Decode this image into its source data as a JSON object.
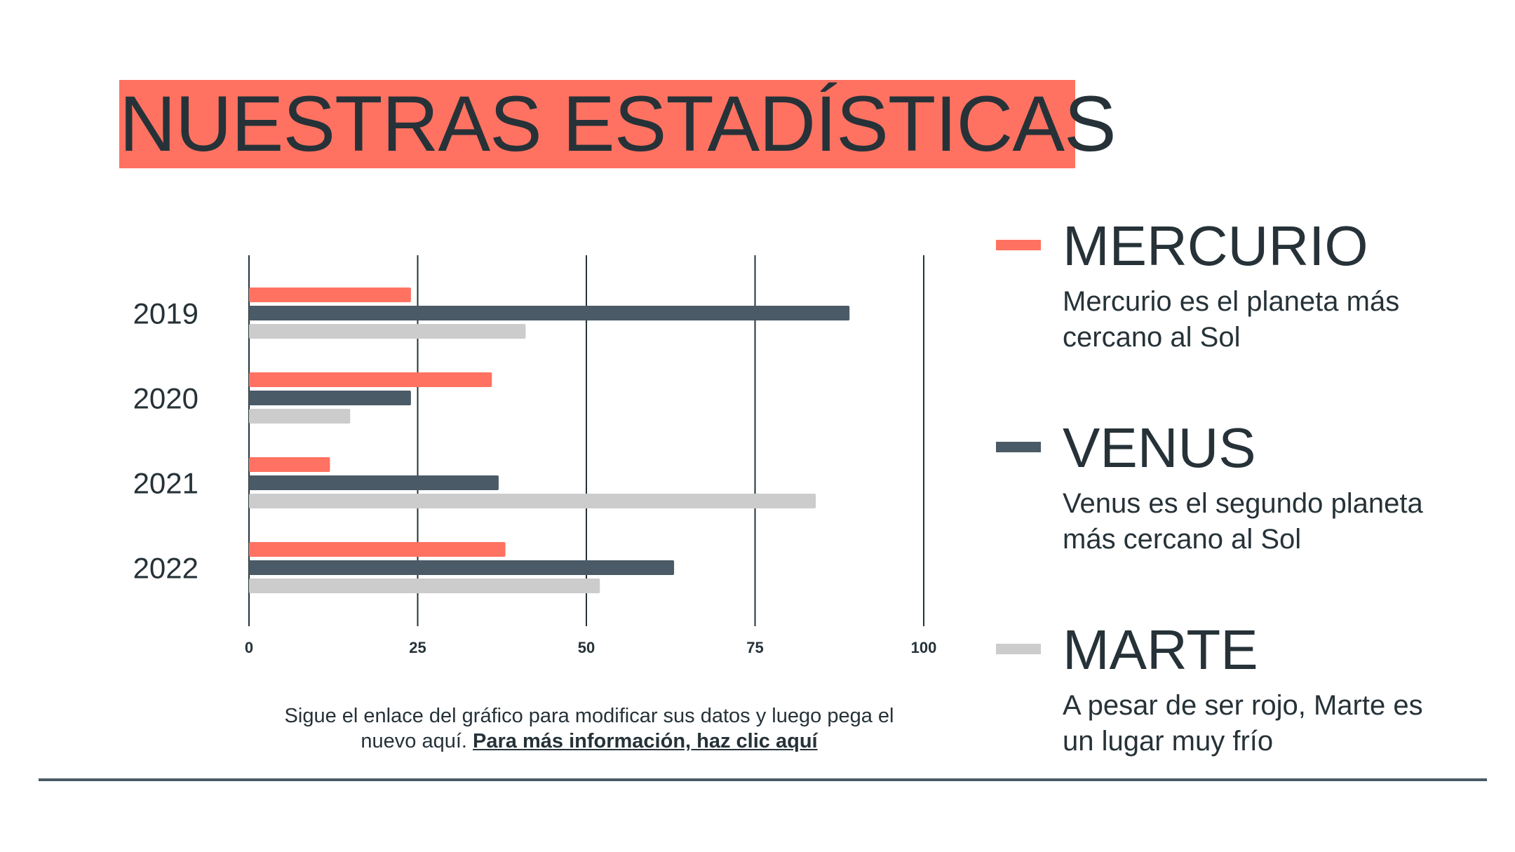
{
  "slide": {
    "title": "NUESTRAS ESTADÍSTICAS",
    "note_text": "Sigue el enlace del gráfico para modificar sus datos y luego pega el nuevo aquí.",
    "note_link": "Para más información, haz clic aquí"
  },
  "legend": [
    {
      "name": "MERCURIO",
      "description": "Mercurio es el planeta más cercano al Sol",
      "color": "#ff7261"
    },
    {
      "name": "VENUS",
      "description": "Venus es el segundo planeta más cercano al Sol",
      "color": "#4a5a66"
    },
    {
      "name": "MARTE",
      "description": "A pesar de ser rojo, Marte es un lugar muy frío",
      "color": "#cccccc"
    }
  ],
  "colors": {
    "accent": "#ff7261",
    "dark": "#4a5a66",
    "light": "#cccccc",
    "text": "#263238"
  },
  "chart_data": {
    "type": "bar",
    "orientation": "horizontal",
    "categories": [
      "2019",
      "2020",
      "2021",
      "2022"
    ],
    "series": [
      {
        "name": "MERCURIO",
        "color": "#ff7261",
        "values": [
          24,
          36,
          12,
          38
        ]
      },
      {
        "name": "VENUS",
        "color": "#4a5a66",
        "values": [
          89,
          24,
          37,
          63
        ]
      },
      {
        "name": "MARTE",
        "color": "#cccccc",
        "values": [
          41,
          15,
          84,
          52
        ]
      }
    ],
    "xlim": [
      0,
      100
    ],
    "xticks": [
      "0",
      "25",
      "50",
      "75",
      "100"
    ],
    "grid": true,
    "legend_placement": "right"
  }
}
